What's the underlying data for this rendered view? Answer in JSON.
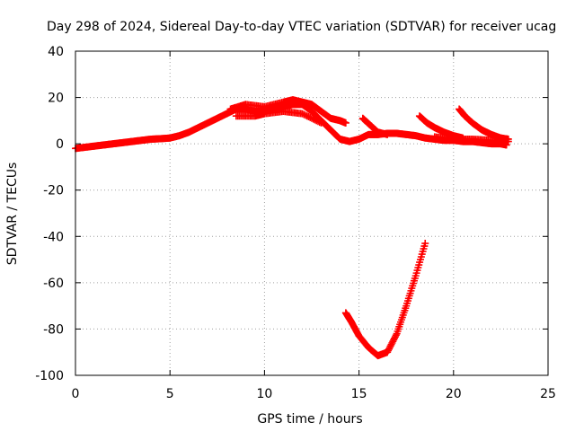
{
  "chart_data": {
    "type": "scatter",
    "title": "Day 298 of 2024, Sidereal Day-to-day VTEC variation (SDTVAR) for receiver ucag",
    "xlabel": "GPS time / hours",
    "ylabel": "SDTVAR / TECUs",
    "xlim": [
      0,
      25
    ],
    "ylim": [
      -100,
      40
    ],
    "xticks": [
      0,
      5,
      10,
      15,
      20,
      25
    ],
    "yticks": [
      -100,
      -80,
      -60,
      -40,
      -20,
      0,
      20,
      40
    ],
    "grid": true,
    "marker": "+",
    "color": "#ff0000",
    "series": [
      {
        "name": "main",
        "points": [
          [
            0,
            -2
          ],
          [
            0.5,
            -1.5
          ],
          [
            1,
            -1
          ],
          [
            1.5,
            -0.5
          ],
          [
            2,
            0
          ],
          [
            2.5,
            0.5
          ],
          [
            3,
            1
          ],
          [
            3.5,
            1.5
          ],
          [
            4,
            2
          ],
          [
            4.5,
            2.2
          ],
          [
            5,
            2.5
          ],
          [
            5.5,
            3.5
          ],
          [
            6,
            5
          ],
          [
            6.5,
            7
          ],
          [
            7,
            9
          ],
          [
            7.5,
            11
          ],
          [
            8,
            13
          ],
          [
            8.5,
            15
          ],
          [
            9,
            15
          ],
          [
            9.5,
            14
          ],
          [
            10,
            14.5
          ],
          [
            10.5,
            15.5
          ],
          [
            11,
            16
          ],
          [
            11.5,
            17
          ],
          [
            12,
            17
          ],
          [
            12.5,
            14
          ],
          [
            13,
            10
          ],
          [
            13.5,
            6
          ],
          [
            14,
            2
          ],
          [
            14.5,
            1
          ],
          [
            15,
            2
          ],
          [
            15.5,
            4
          ],
          [
            16,
            4
          ],
          [
            16.5,
            4.5
          ],
          [
            17,
            4.5
          ],
          [
            17.5,
            4
          ],
          [
            18,
            3.5
          ],
          [
            18.5,
            2.5
          ],
          [
            19,
            2
          ],
          [
            19.5,
            1.5
          ],
          [
            20,
            1.5
          ],
          [
            20.5,
            1
          ],
          [
            21,
            1
          ],
          [
            21.5,
            0.5
          ],
          [
            22,
            0
          ],
          [
            22.5,
            0
          ],
          [
            22.8,
            -0.5
          ]
        ]
      },
      {
        "name": "upper-band",
        "points": [
          [
            8.2,
            15
          ],
          [
            9,
            17
          ],
          [
            10,
            16
          ],
          [
            11,
            18
          ],
          [
            11.5,
            19
          ],
          [
            12,
            18
          ],
          [
            12.5,
            17
          ],
          [
            13,
            14
          ],
          [
            13.5,
            11
          ],
          [
            14,
            10
          ],
          [
            14.3,
            9
          ]
        ]
      },
      {
        "name": "lower-band",
        "points": [
          [
            8.5,
            12
          ],
          [
            9.5,
            12
          ],
          [
            10,
            13
          ],
          [
            11,
            14
          ],
          [
            12,
            13
          ],
          [
            13,
            9
          ]
        ]
      },
      {
        "name": "dip-curve",
        "points": [
          [
            14.3,
            -73
          ],
          [
            14.6,
            -77
          ],
          [
            15,
            -83
          ],
          [
            15.5,
            -88
          ],
          [
            16,
            -91.5
          ],
          [
            16.5,
            -90
          ],
          [
            17,
            -82
          ],
          [
            17.5,
            -70
          ],
          [
            18,
            -57
          ],
          [
            18.5,
            -43
          ]
        ]
      },
      {
        "name": "tail-1",
        "points": [
          [
            15.2,
            11
          ],
          [
            15.6,
            8
          ],
          [
            16,
            5
          ],
          [
            16.5,
            4
          ]
        ]
      },
      {
        "name": "tail-2",
        "points": [
          [
            18.2,
            12
          ],
          [
            18.6,
            9
          ],
          [
            19,
            7
          ],
          [
            19.5,
            5
          ],
          [
            20,
            3.5
          ],
          [
            20.5,
            2.5
          ]
        ]
      },
      {
        "name": "tail-3",
        "points": [
          [
            20.3,
            15
          ],
          [
            20.6,
            12
          ],
          [
            21,
            9
          ],
          [
            21.5,
            6
          ],
          [
            22,
            4
          ],
          [
            22.5,
            2.5
          ],
          [
            22.9,
            2
          ]
        ]
      },
      {
        "name": "tail-4",
        "points": [
          [
            19,
            3
          ],
          [
            20,
            2
          ],
          [
            21,
            2
          ],
          [
            22,
            1.5
          ],
          [
            22.9,
            1
          ]
        ]
      }
    ]
  }
}
